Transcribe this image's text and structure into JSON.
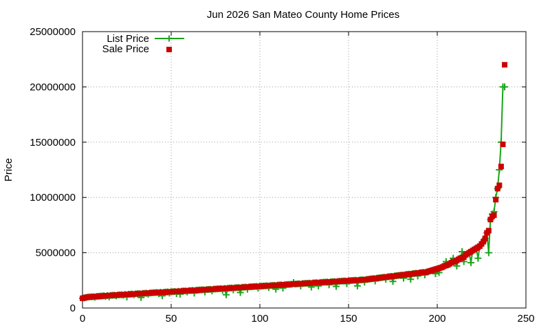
{
  "chart_data": {
    "type": "scatter",
    "title": "Jun 2026 San Mateo County Home Prices",
    "xlabel": "",
    "ylabel": "Price",
    "xlim": [
      0,
      250
    ],
    "ylim": [
      0,
      25000000
    ],
    "x_ticks": [
      0,
      50,
      100,
      150,
      200,
      250
    ],
    "y_ticks": [
      0,
      5000000,
      10000000,
      15000000,
      20000000,
      25000000
    ],
    "x_tick_labels": [
      "0",
      "50",
      "100",
      "150",
      "200",
      "250"
    ],
    "y_tick_labels": [
      "0",
      "5000000",
      "10000000",
      "15000000",
      "20000000",
      "25000000"
    ],
    "grid": true,
    "legend_position": "top-left",
    "n_points": 243,
    "series": [
      {
        "name": "List Price",
        "style": "line-plus",
        "color": "#1aa31a",
        "values": [
          880000,
          920000,
          950000,
          990000,
          1000000,
          1010000,
          1020000,
          980000,
          1050000,
          1060000,
          1070000,
          1080000,
          1100000,
          1050000,
          1120000,
          1000000,
          1140000,
          1150000,
          1160000,
          1100000,
          1180000,
          1190000,
          1200000,
          1150000,
          1220000,
          1000000,
          1240000,
          1250000,
          1260000,
          1200000,
          1280000,
          1290000,
          1300000,
          950000,
          1320000,
          1330000,
          1340000,
          1250000,
          1360000,
          1370000,
          1380000,
          1390000,
          1400000,
          1300000,
          1420000,
          1100000,
          1430000,
          1440000,
          1450000,
          1350000,
          1470000,
          1480000,
          1490000,
          1300000,
          1510000,
          1250000,
          1530000,
          1540000,
          1550000,
          1450000,
          1570000,
          1580000,
          1590000,
          1350000,
          1600000,
          1620000,
          1630000,
          1640000,
          1650000,
          1450000,
          1670000,
          1680000,
          1690000,
          1550000,
          1710000,
          1720000,
          1730000,
          1740000,
          1750000,
          1600000,
          1770000,
          1200000,
          1790000,
          1800000,
          1810000,
          1650000,
          1830000,
          1840000,
          1850000,
          1400000,
          1870000,
          1880000,
          1890000,
          1700000,
          1910000,
          1920000,
          1930000,
          1940000,
          1950000,
          1800000,
          1970000,
          1980000,
          1990000,
          2000000,
          2010000,
          1850000,
          2030000,
          2040000,
          2050000,
          1700000,
          2070000,
          2080000,
          2090000,
          1800000,
          2110000,
          2120000,
          2130000,
          2140000,
          2150000,
          2300000,
          2170000,
          2180000,
          2190000,
          2000000,
          2210000,
          2220000,
          2230000,
          2240000,
          2250000,
          1900000,
          2270000,
          2280000,
          2290000,
          2000000,
          2310000,
          2320000,
          2330000,
          2340000,
          2350000,
          2100000,
          2370000,
          2380000,
          2390000,
          1950000,
          2410000,
          2420000,
          2430000,
          2440000,
          2450000,
          2200000,
          2470000,
          2480000,
          2490000,
          2500000,
          2510000,
          2000000,
          2530000,
          2540000,
          2550000,
          2350000,
          2580000,
          2600000,
          2620000,
          2640000,
          2660000,
          2450000,
          2700000,
          2720000,
          2740000,
          2760000,
          2780000,
          2600000,
          2820000,
          2840000,
          2860000,
          2400000,
          2900000,
          2920000,
          2940000,
          2960000,
          2980000,
          2700000,
          3020000,
          3040000,
          3060000,
          2600000,
          3100000,
          3120000,
          3140000,
          2900000,
          3180000,
          3200000,
          3220000,
          3000000,
          3260000,
          3300000,
          3350000,
          3400000,
          3450000,
          3100000,
          3550000,
          3200000,
          3650000,
          3700000,
          3800000,
          4200000,
          3900000,
          4000000,
          4100000,
          4500000,
          4200000,
          3800000,
          4400000,
          4500000,
          5100000,
          4200000,
          4800000,
          4900000,
          5000000,
          4100000,
          5200000,
          5300000,
          5400000,
          4500000,
          5600000,
          5800000,
          6000000,
          6300000,
          6800000,
          5000000,
          8000000,
          8500000,
          8700000,
          10000000,
          10800000,
          12500000,
          15000000,
          20000000,
          20000000
        ]
      },
      {
        "name": "Sale Price",
        "style": "square",
        "color": "#cc0000",
        "values": [
          880000,
          920000,
          950000,
          990000,
          1000000,
          1010000,
          1020000,
          1030000,
          1050000,
          1060000,
          1070000,
          1080000,
          1100000,
          1110000,
          1120000,
          1130000,
          1140000,
          1150000,
          1160000,
          1170000,
          1180000,
          1190000,
          1200000,
          1210000,
          1220000,
          1230000,
          1240000,
          1250000,
          1260000,
          1270000,
          1280000,
          1290000,
          1300000,
          1310000,
          1320000,
          1330000,
          1340000,
          1350000,
          1360000,
          1370000,
          1380000,
          1390000,
          1400000,
          1410000,
          1420000,
          1420000,
          1430000,
          1440000,
          1450000,
          1460000,
          1470000,
          1480000,
          1490000,
          1500000,
          1510000,
          1520000,
          1530000,
          1540000,
          1550000,
          1560000,
          1570000,
          1580000,
          1590000,
          1600000,
          1600000,
          1620000,
          1630000,
          1640000,
          1650000,
          1660000,
          1670000,
          1680000,
          1690000,
          1700000,
          1710000,
          1720000,
          1730000,
          1740000,
          1750000,
          1760000,
          1770000,
          1780000,
          1790000,
          1800000,
          1810000,
          1820000,
          1830000,
          1840000,
          1850000,
          1860000,
          1870000,
          1880000,
          1890000,
          1900000,
          1910000,
          1920000,
          1930000,
          1940000,
          1950000,
          1960000,
          1970000,
          1980000,
          1990000,
          2000000,
          2010000,
          2020000,
          2030000,
          2040000,
          2050000,
          2060000,
          2070000,
          2080000,
          2090000,
          2100000,
          2110000,
          2120000,
          2130000,
          2140000,
          2150000,
          2160000,
          2170000,
          2180000,
          2190000,
          2200000,
          2210000,
          2220000,
          2230000,
          2240000,
          2250000,
          2260000,
          2270000,
          2280000,
          2290000,
          2300000,
          2310000,
          2320000,
          2330000,
          2340000,
          2350000,
          2360000,
          2370000,
          2380000,
          2390000,
          2400000,
          2410000,
          2420000,
          2430000,
          2440000,
          2450000,
          2460000,
          2470000,
          2480000,
          2490000,
          2500000,
          2510000,
          2520000,
          2530000,
          2540000,
          2550000,
          2560000,
          2580000,
          2600000,
          2620000,
          2640000,
          2660000,
          2680000,
          2700000,
          2720000,
          2740000,
          2760000,
          2780000,
          2800000,
          2820000,
          2840000,
          2860000,
          2880000,
          2900000,
          2920000,
          2940000,
          2960000,
          2980000,
          3000000,
          3020000,
          3040000,
          3060000,
          3080000,
          3100000,
          3120000,
          3140000,
          3160000,
          3180000,
          3200000,
          3220000,
          3240000,
          3260000,
          3300000,
          3350000,
          3400000,
          3450000,
          3500000,
          3550000,
          3600000,
          3650000,
          3700000,
          3800000,
          3850000,
          3900000,
          4000000,
          4100000,
          4200000,
          4200000,
          4300000,
          4400000,
          4500000,
          4550000,
          4600000,
          4800000,
          4900000,
          5000000,
          5100000,
          5200000,
          5300000,
          5400000,
          5500000,
          5600000,
          5800000,
          6000000,
          6300000,
          6800000,
          7000000,
          8000000,
          8300000,
          8400000,
          9800000,
          10800000,
          11100000,
          12800000,
          14800000,
          22000000
        ]
      }
    ]
  }
}
